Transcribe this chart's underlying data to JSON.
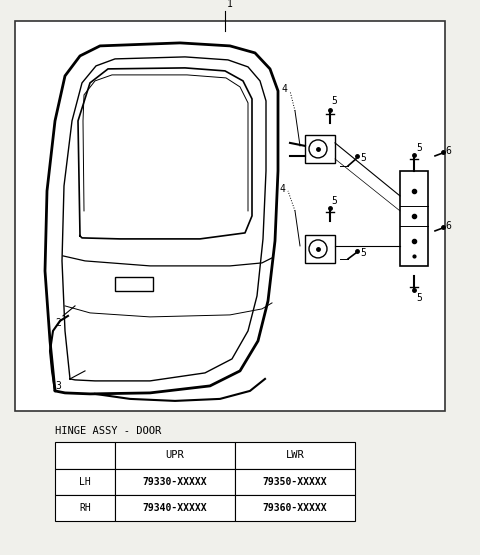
{
  "bg_color": "#f0f0eb",
  "diagram_bg": "#ffffff",
  "title_table": "HINGE ASSY - DOOR",
  "table_headers": [
    "",
    "UPR",
    "LWR"
  ],
  "table_rows": [
    [
      "LH",
      "79330-XXXXX",
      "79350-XXXXX"
    ],
    [
      "RH",
      "79340-XXXXX",
      "79360-XXXXX"
    ]
  ]
}
